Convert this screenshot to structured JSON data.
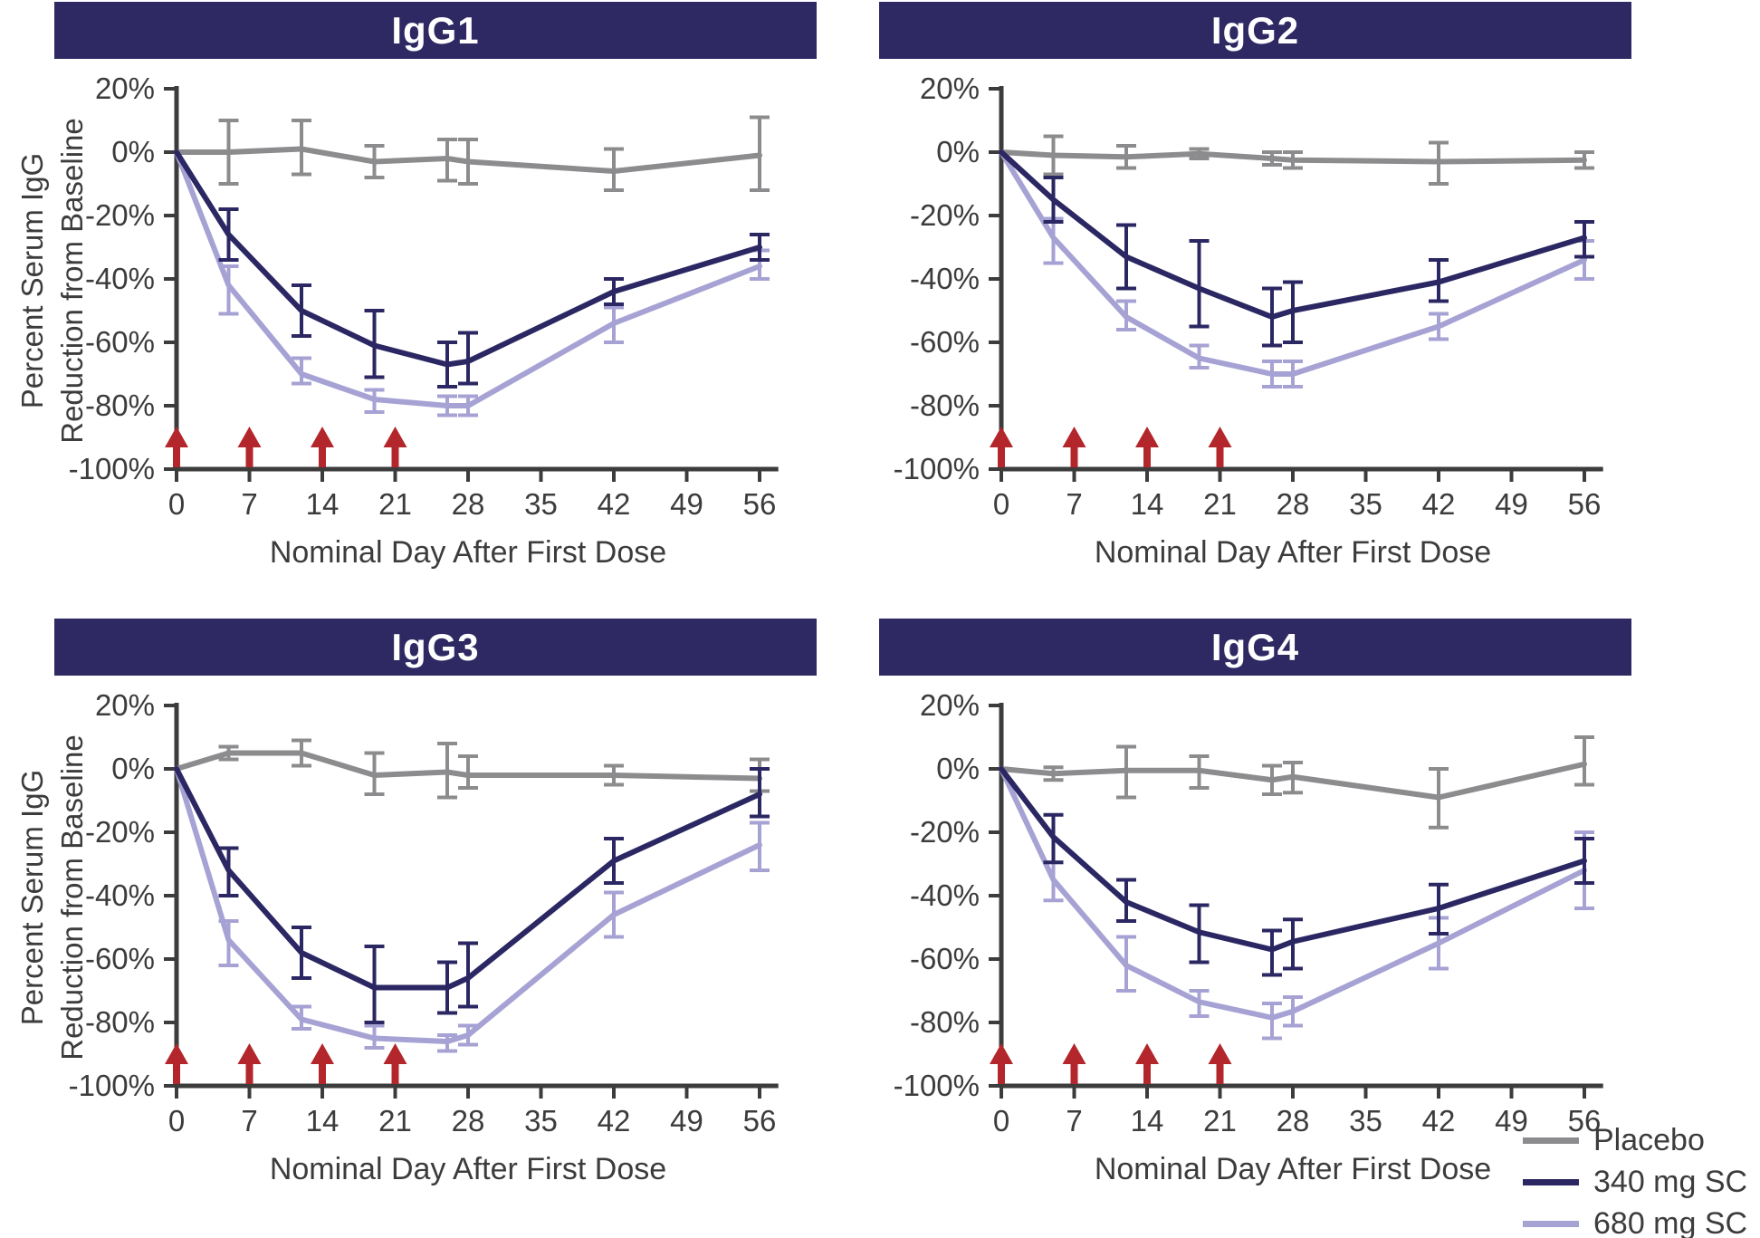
{
  "config": {
    "colors": {
      "header_bg": "#2e2963",
      "title_text": "#ffffff",
      "axis": "#3c3c3c",
      "text": "#3c3c3c",
      "placebo": "#8c8c8e",
      "mg340": "#2b2763",
      "mg680": "#a6a2d4",
      "arrow": "#b3262b"
    },
    "xlabel": "Nominal Day After First Dose",
    "ylabel_line1": "Percent Serum IgG",
    "ylabel_line2": "Reduction from Baseline",
    "x_ticks": [
      {
        "day": 0,
        "label": "0"
      },
      {
        "day": 7,
        "label": "7"
      },
      {
        "day": 14,
        "label": "14"
      },
      {
        "day": 21,
        "label": "21"
      },
      {
        "day": 28,
        "label": "28"
      },
      {
        "day": 35,
        "label": "35"
      },
      {
        "day": 42,
        "label": "42"
      },
      {
        "day": 49,
        "label": "49"
      },
      {
        "day": 56,
        "label": "56"
      }
    ],
    "y_ticks": [
      {
        "value": 20,
        "label": "20%"
      },
      {
        "value": 0,
        "label": "0%"
      },
      {
        "value": -20,
        "label": "-20%"
      },
      {
        "value": -40,
        "label": "-40%"
      },
      {
        "value": -60,
        "label": "-60%"
      },
      {
        "value": -80,
        "label": "-80%"
      },
      {
        "value": -100,
        "label": "-100%"
      }
    ],
    "arrow_days": [
      0,
      7,
      14,
      21
    ],
    "legend": {
      "items": [
        {
          "label": "Placebo",
          "color": "placebo"
        },
        {
          "label": "340 mg SC",
          "color": "mg340"
        },
        {
          "label": "680 mg SC",
          "color": "mg680"
        }
      ]
    }
  },
  "chart_data": [
    {
      "type": "line",
      "title": "IgG1",
      "xlabel": "Nominal Day After First Dose",
      "ylabel": "Percent Serum IgG Reduction from Baseline",
      "xlim": [
        0,
        56
      ],
      "ylim": [
        -100,
        20
      ],
      "x_days": [
        0,
        5,
        12,
        19,
        26,
        28,
        42,
        56
      ],
      "dose_arrow_days": [
        0,
        7,
        14,
        21
      ],
      "series": [
        {
          "name": "Placebo",
          "color": "placebo",
          "y": [
            0,
            0,
            1,
            -3,
            -2,
            -3,
            -6,
            -1
          ],
          "err_lo": [
            0,
            -10,
            -7,
            -8,
            -9,
            -10,
            -12,
            -12
          ],
          "err_hi": [
            0,
            10,
            10,
            2,
            4,
            4,
            1,
            11
          ]
        },
        {
          "name": "340 mg SC",
          "color": "mg340",
          "y": [
            0,
            -26,
            -50,
            -61,
            -67,
            -66,
            -44,
            -30
          ],
          "err_lo": [
            0,
            -34,
            -58,
            -71,
            -74,
            -73,
            -48,
            -34
          ],
          "err_hi": [
            0,
            -18,
            -42,
            -50,
            -60,
            -57,
            -40,
            -26
          ]
        },
        {
          "name": "680 mg SC",
          "color": "mg680",
          "y": [
            0,
            -42,
            -70,
            -78,
            -80,
            -80,
            -54,
            -36
          ],
          "err_lo": [
            0,
            -51,
            -73,
            -82,
            -83,
            -83,
            -60,
            -40
          ],
          "err_hi": [
            0,
            -36,
            -65,
            -75,
            -77,
            -77,
            -49,
            -31
          ]
        }
      ]
    },
    {
      "type": "line",
      "title": "IgG2",
      "xlabel": "Nominal Day After First Dose",
      "ylabel": "Percent Serum IgG Reduction from Baseline",
      "xlim": [
        0,
        56
      ],
      "ylim": [
        -100,
        20
      ],
      "x_days": [
        0,
        5,
        12,
        19,
        26,
        28,
        42,
        56
      ],
      "dose_arrow_days": [
        0,
        7,
        14,
        21
      ],
      "series": [
        {
          "name": "Placebo",
          "color": "placebo",
          "y": [
            0,
            -1,
            -1.5,
            -0.5,
            -2,
            -2.5,
            -3,
            -2.5
          ],
          "err_lo": [
            0,
            -7,
            -5,
            -2,
            -4,
            -5,
            -10,
            -5
          ],
          "err_hi": [
            0,
            5,
            2,
            1,
            0,
            0,
            3,
            0
          ]
        },
        {
          "name": "340 mg SC",
          "color": "mg340",
          "y": [
            0,
            -15,
            -33,
            -43,
            -52,
            -50,
            -41,
            -27
          ],
          "err_lo": [
            0,
            -22,
            -43,
            -55,
            -61,
            -60,
            -47,
            -33
          ],
          "err_hi": [
            0,
            -8,
            -23,
            -28,
            -43,
            -41,
            -34,
            -22
          ]
        },
        {
          "name": "680 mg SC",
          "color": "mg680",
          "y": [
            0,
            -27,
            -52,
            -65,
            -70,
            -70,
            -55,
            -34
          ],
          "err_lo": [
            0,
            -35,
            -56,
            -68,
            -74,
            -74,
            -59,
            -40
          ],
          "err_hi": [
            0,
            -21,
            -47,
            -61,
            -66,
            -66,
            -51,
            -28
          ]
        }
      ]
    },
    {
      "type": "line",
      "title": "IgG3",
      "xlabel": "Nominal Day After First Dose",
      "ylabel": "Percent Serum IgG Reduction from Baseline",
      "xlim": [
        0,
        56
      ],
      "ylim": [
        -100,
        20
      ],
      "x_days": [
        0,
        5,
        12,
        19,
        26,
        28,
        42,
        56
      ],
      "dose_arrow_days": [
        0,
        7,
        14,
        21
      ],
      "series": [
        {
          "name": "Placebo",
          "color": "placebo",
          "y": [
            0,
            5,
            5,
            -2,
            -1,
            -2,
            -2,
            -3
          ],
          "err_lo": [
            0,
            3,
            1,
            -8,
            -9,
            -6,
            -5,
            -7
          ],
          "err_hi": [
            0,
            7,
            9,
            5,
            8,
            4,
            1,
            3
          ]
        },
        {
          "name": "340 mg SC",
          "color": "mg340",
          "y": [
            0,
            -32,
            -58,
            -69,
            -69,
            -66,
            -29,
            -8
          ],
          "err_lo": [
            0,
            -40,
            -66,
            -80,
            -77,
            -75,
            -36,
            -15
          ],
          "err_hi": [
            0,
            -25,
            -50,
            -56,
            -61,
            -55,
            -22,
            0
          ]
        },
        {
          "name": "680 mg SC",
          "color": "mg680",
          "y": [
            0,
            -54,
            -79,
            -85,
            -86,
            -84,
            -46,
            -24
          ],
          "err_lo": [
            0,
            -62,
            -82,
            -88,
            -89,
            -87,
            -53,
            -32
          ],
          "err_hi": [
            0,
            -48,
            -75,
            -81,
            -84,
            -81,
            -39,
            -17
          ]
        }
      ]
    },
    {
      "type": "line",
      "title": "IgG4",
      "xlabel": "Nominal Day After First Dose",
      "ylabel": "Percent Serum IgG Reduction from Baseline",
      "xlim": [
        0,
        56
      ],
      "ylim": [
        -100,
        20
      ],
      "x_days": [
        0,
        5,
        12,
        19,
        26,
        28,
        42,
        56
      ],
      "dose_arrow_days": [
        0,
        7,
        14,
        21
      ],
      "series": [
        {
          "name": "Placebo",
          "color": "placebo",
          "y": [
            0,
            -1.5,
            -0.5,
            -0.5,
            -3.5,
            -2.5,
            -9,
            1.5
          ],
          "err_lo": [
            0,
            -3.5,
            -9,
            -6,
            -8,
            -7.5,
            -18.5,
            -5
          ],
          "err_hi": [
            0,
            0.5,
            7,
            4,
            1,
            2,
            0,
            10
          ]
        },
        {
          "name": "340 mg SC",
          "color": "mg340",
          "y": [
            0,
            -21.5,
            -42,
            -51.5,
            -57,
            -54.5,
            -44,
            -29
          ],
          "err_lo": [
            0,
            -29.5,
            -48,
            -61,
            -65,
            -63,
            -52,
            -36
          ],
          "err_hi": [
            0,
            -14.5,
            -35,
            -43,
            -51,
            -47.5,
            -36.5,
            -22
          ]
        },
        {
          "name": "680 mg SC",
          "color": "mg680",
          "y": [
            0,
            -35,
            -62,
            -73.5,
            -78.5,
            -76.5,
            -55,
            -32
          ],
          "err_lo": [
            0,
            -41.5,
            -70,
            -78,
            -85,
            -81,
            -63,
            -44
          ],
          "err_hi": [
            0,
            -29.5,
            -53,
            -70,
            -74,
            -72,
            -47,
            -20
          ]
        }
      ]
    }
  ]
}
